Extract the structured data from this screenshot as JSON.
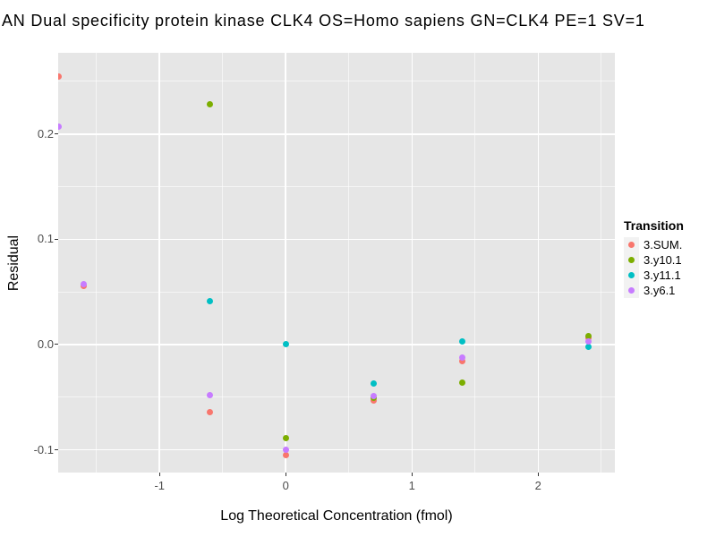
{
  "title": "AN Dual specificity protein kinase CLK4 OS=Homo sapiens GN=CLK4 PE=1 SV=1",
  "axes": {
    "x": {
      "title": "Log Theoretical Concentration (fmol)"
    },
    "y": {
      "title": "Residual"
    }
  },
  "legend": {
    "title": "Transition"
  },
  "colors": {
    "panel_background": "#E6E6E6",
    "gridline": "#FFFFFF",
    "tick_text": "#4d4d4d"
  },
  "chart_data": {
    "type": "scatter",
    "title": "AN Dual specificity protein kinase CLK4 OS=Homo sapiens GN=CLK4 PE=1 SV=1",
    "xlabel": "Log Theoretical Concentration (fmol)",
    "ylabel": "Residual",
    "xlim": [
      -1.803,
      2.608
    ],
    "ylim": [
      -0.1216,
      0.2772
    ],
    "x_ticks": {
      "values": [
        -1,
        0,
        1,
        2
      ],
      "labels": [
        "-1",
        "0",
        "1",
        "2"
      ]
    },
    "y_ticks": {
      "values": [
        0.2,
        0.1,
        0.0,
        -0.1
      ],
      "labels": [
        "0.2",
        "0.1",
        "0.0",
        "-0.1"
      ]
    },
    "x_minor_ticks": [
      -1.5,
      -0.5,
      0.5,
      1.5,
      2.5
    ],
    "y_minor_ticks": [
      0.25,
      0.15,
      0.05,
      -0.05,
      -0.15
    ],
    "grid": true,
    "legend_position": "right",
    "legend_title": "Transition",
    "series": [
      {
        "name": "3.SUM.",
        "color": "#F8766D",
        "points": [
          {
            "x": -1.8,
            "y": 0.255
          },
          {
            "x": -1.6,
            "y": 0.056
          },
          {
            "x": -0.6,
            "y": -0.064
          },
          {
            "x": 0.0,
            "y": -0.105
          },
          {
            "x": 0.7,
            "y": -0.053
          },
          {
            "x": 1.4,
            "y": -0.016
          },
          {
            "x": 2.4,
            "y": 0.006
          }
        ]
      },
      {
        "name": "3.y10.1",
        "color": "#7CAE00",
        "points": [
          {
            "x": -0.6,
            "y": 0.228
          },
          {
            "x": 0.0,
            "y": -0.089
          },
          {
            "x": 0.7,
            "y": -0.051
          },
          {
            "x": 1.4,
            "y": -0.036
          },
          {
            "x": 2.4,
            "y": 0.008
          }
        ]
      },
      {
        "name": "3.y11.1",
        "color": "#00BFC4",
        "points": [
          {
            "x": -0.6,
            "y": 0.041
          },
          {
            "x": 0.0,
            "y": 0.0
          },
          {
            "x": 0.7,
            "y": -0.037
          },
          {
            "x": 1.4,
            "y": 0.003
          },
          {
            "x": 2.4,
            "y": -0.002
          }
        ]
      },
      {
        "name": "3.y6.1",
        "color": "#C77CFF",
        "points": [
          {
            "x": -1.8,
            "y": 0.207
          },
          {
            "x": -1.6,
            "y": 0.057
          },
          {
            "x": -0.6,
            "y": -0.048
          },
          {
            "x": 0.0,
            "y": -0.1
          },
          {
            "x": 0.7,
            "y": -0.049
          },
          {
            "x": 1.4,
            "y": -0.012
          },
          {
            "x": 2.4,
            "y": 0.003
          }
        ]
      }
    ]
  }
}
